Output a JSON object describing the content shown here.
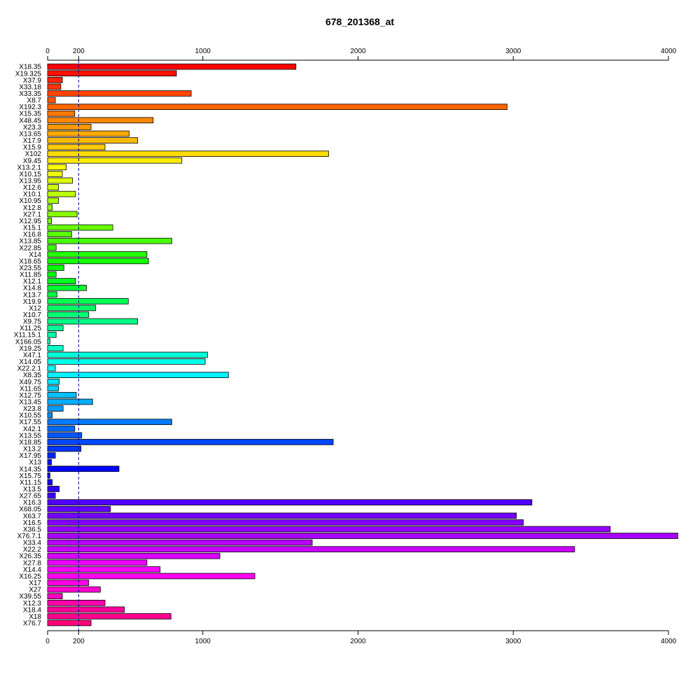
{
  "chart_data": {
    "type": "bar",
    "orientation": "horizontal",
    "title": "678_201368_at",
    "xlabel": "",
    "ylabel": "",
    "xlim": [
      0,
      4000
    ],
    "xticks": [
      0,
      200,
      1000,
      2000,
      3000,
      4000
    ],
    "reference_line": {
      "x": 200,
      "style": "dashed",
      "color": "#00008b"
    },
    "grid": false,
    "legend": "none",
    "categories": [
      "X18.35",
      "X19.325",
      "X37.9",
      "X33.18",
      "X33.35",
      "X8.7",
      "X192.3",
      "X15.35",
      "X48.45",
      "X23.3",
      "X13.65",
      "X17.9",
      "X15.9",
      "X102",
      "X9.45",
      "X13.2.1",
      "X10.15",
      "X13.95",
      "X12.6",
      "X10.1",
      "X10.95",
      "X12.8",
      "X27.1",
      "X12.95",
      "X15.1",
      "X16.8",
      "X13.85",
      "X22.85",
      "X14",
      "X18.65",
      "X23.55",
      "X11.85",
      "X12.1",
      "X14.8",
      "X13.7",
      "X19.9",
      "X12",
      "X10.7",
      "X9.75",
      "X11.25",
      "X11.15.1",
      "X166.05",
      "X19.25",
      "X47.1",
      "X14.05",
      "X22.2.1",
      "X8.35",
      "X49.75",
      "X11.65",
      "X12.75",
      "X13.45",
      "X23.8",
      "X10.55",
      "X17.55",
      "X42.1",
      "X13.55",
      "X18.85",
      "X13.2",
      "X17.95",
      "X13",
      "X14.35",
      "X15.75",
      "X11.15",
      "X13.5",
      "X27.65",
      "X16.3",
      "X68.05",
      "X63.7",
      "X16.5",
      "X36.5",
      "X76.7.1",
      "X33.4",
      "X22.2",
      "X26.35",
      "X27.8",
      "X14.4",
      "X16.25",
      "X17",
      "X27",
      "X39.55",
      "X12.3",
      "X18.4",
      "X18",
      "X76.7"
    ],
    "values": [
      1600,
      830,
      95,
      85,
      925,
      50,
      2960,
      175,
      680,
      280,
      525,
      580,
      370,
      1810,
      865,
      120,
      95,
      160,
      70,
      180,
      70,
      30,
      190,
      25,
      420,
      155,
      800,
      55,
      640,
      650,
      105,
      55,
      180,
      250,
      60,
      520,
      310,
      265,
      580,
      100,
      55,
      15,
      100,
      1030,
      1015,
      50,
      1165,
      75,
      70,
      185,
      290,
      100,
      30,
      800,
      175,
      220,
      1840,
      215,
      50,
      25,
      460,
      15,
      30,
      75,
      50,
      3120,
      405,
      3020,
      3065,
      3625,
      4060,
      1705,
      3395,
      1110,
      640,
      725,
      1335,
      265,
      340,
      95,
      370,
      495,
      795,
      280
    ]
  }
}
